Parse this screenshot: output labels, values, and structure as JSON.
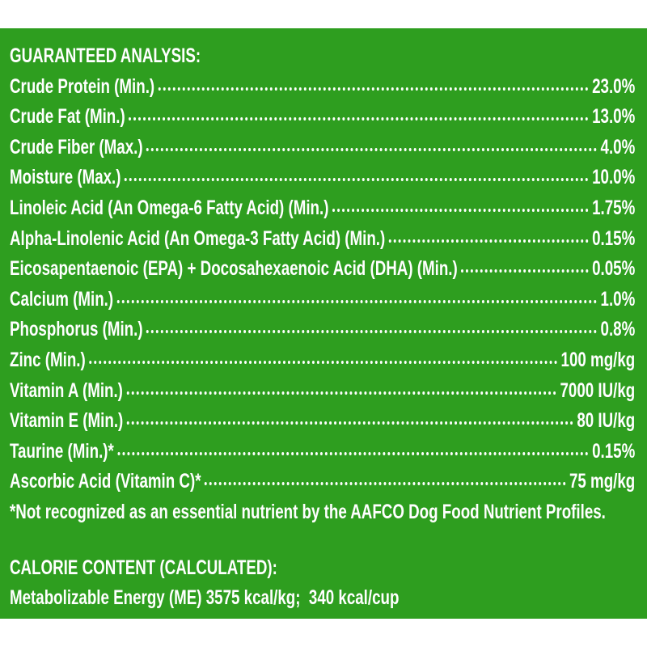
{
  "title": "GUARANTEED ANALYSIS:",
  "rows": [
    {
      "nutrient": "Crude Protein (Min.)",
      "value": "23.0%"
    },
    {
      "nutrient": "Crude Fat (Min.)",
      "value": "13.0%"
    },
    {
      "nutrient": "Crude Fiber (Max.)",
      "value": "4.0%"
    },
    {
      "nutrient": "Moisture (Max.)",
      "value": "10.0%"
    },
    {
      "nutrient": "Linoleic Acid (An Omega-6 Fatty Acid) (Min.)",
      "value": "1.75%"
    },
    {
      "nutrient": "Alpha-Linolenic Acid (An Omega-3 Fatty Acid) (Min.)",
      "value": "0.15%"
    },
    {
      "nutrient": "Eicosapentaenoic (EPA) + Docosahexaenoic Acid (DHA) (Min.)",
      "value": "0.05%"
    },
    {
      "nutrient": "Calcium (Min.)",
      "value": "1.0%"
    },
    {
      "nutrient": "Phosphorus (Min.)",
      "value": "0.8%"
    },
    {
      "nutrient": "Zinc (Min.)",
      "value": "100 mg/kg"
    },
    {
      "nutrient": "Vitamin A (Min.)",
      "value": "7000 IU/kg"
    },
    {
      "nutrient": "Vitamin E (Min.)",
      "value": "80 IU/kg"
    },
    {
      "nutrient": "Taurine (Min.)*",
      "value": "0.15%"
    },
    {
      "nutrient": "Ascorbic Acid (Vitamin C)*",
      "value": "75 mg/kg"
    }
  ],
  "footnote": "*Not recognized as an essential nutrient by the AAFCO Dog Food Nutrient Profiles.",
  "calorie_heading": "CALORIE CONTENT (CALCULATED):",
  "calorie_text": "Metabolizable Energy (ME) 3575 kcal/kg;  340 kcal/cup"
}
